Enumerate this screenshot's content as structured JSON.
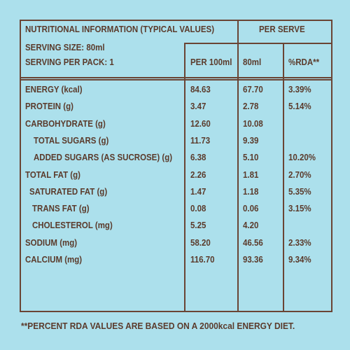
{
  "header": {
    "title": "NUTRITIONAL INFORMATION (TYPICAL VALUES)",
    "serving_size": "SERVING SIZE: 80ml",
    "servings_per_pack": "SERVING PER PACK: 1",
    "per_serve": "PER SERVE"
  },
  "columns": [
    "PER 100ml",
    "80ml",
    "%RDA**"
  ],
  "rows": [
    [
      "ENERGY (kcal)",
      "84.63",
      "67.70",
      "3.39%"
    ],
    [
      "PROTEIN (g)",
      "3.47",
      "2.78",
      "5.14%"
    ],
    [
      "CARBOHYDRATE (g)",
      "12.60",
      "10.08"
    ],
    [
      "TOTAL SUGARS (g)",
      "11.73",
      "9.39"
    ],
    [
      "ADDED SUGARS (AS SUCROSE) (g)",
      "6.38",
      "5.10",
      "10.20%"
    ],
    [
      "TOTAL FAT (g)",
      "2.26",
      "1.81",
      "2.70%"
    ],
    [
      "SATURATED FAT (g)",
      "1.47",
      "1.18",
      "5.35%"
    ],
    [
      "TRANS FAT (g)",
      "0.08",
      "0.06",
      "3.15%"
    ],
    [
      "CHOLESTEROL (mg)",
      "5.25",
      "4.20"
    ],
    [
      "SODIUM (mg)",
      "58.20",
      "46.56",
      "2.33%"
    ],
    [
      "CALCIUM (mg)",
      "116.70",
      "93.36",
      "9.34%"
    ]
  ],
  "footnote": "**PERCENT RDA VALUES ARE BASED ON A 2000kcal ENERGY DIET."
}
